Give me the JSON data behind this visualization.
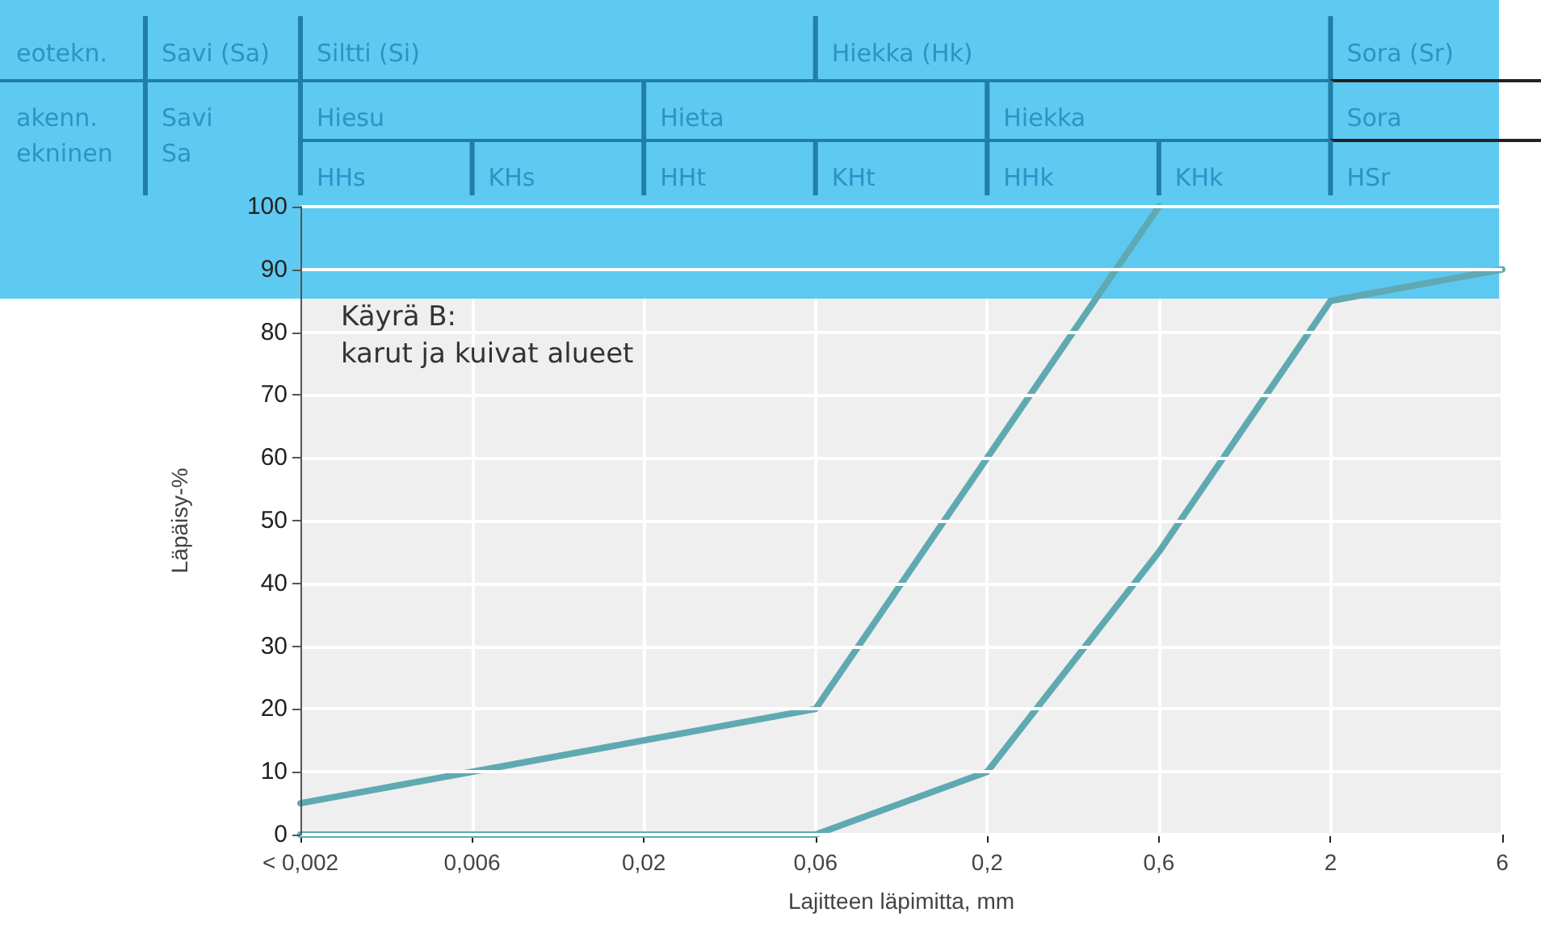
{
  "chart_data": {
    "type": "line",
    "title": "Käyrä B:",
    "subtitle": "karut ja kuivat alueet",
    "xlabel": "Lajitteen läpimitta, mm",
    "ylabel": "Läpäisy-%",
    "categories": [
      "< 0,002",
      "0,006",
      "0,02",
      "0,06",
      "0,2",
      "0,6",
      "2",
      "6"
    ],
    "series": [
      {
        "color": "#5fa9b2",
        "values": [
          5,
          10,
          15,
          20,
          60,
          100,
          null,
          null
        ]
      },
      {
        "color": "#5fa9b2",
        "values": [
          0,
          0,
          0,
          0,
          10,
          45,
          85,
          90
        ]
      }
    ],
    "ylim": [
      0,
      100
    ],
    "yticks": [
      0,
      10,
      20,
      30,
      40,
      50,
      60,
      70,
      80,
      90,
      100
    ],
    "grid": true,
    "marker": "none",
    "line_style": "solid",
    "annotations": [
      "eotekn.",
      "Savi (Sa)",
      "Siltti (Si)",
      "Hiekka (Hk)",
      "Sora (Sr)",
      "akenn.\nekninen",
      "Savi\nSa",
      "Hiesu",
      "Hieta",
      "Hiekka",
      "Sora",
      "HHs",
      "KHs",
      "HHt",
      "KHt",
      "HHk",
      "KHk",
      "HSr"
    ]
  }
}
